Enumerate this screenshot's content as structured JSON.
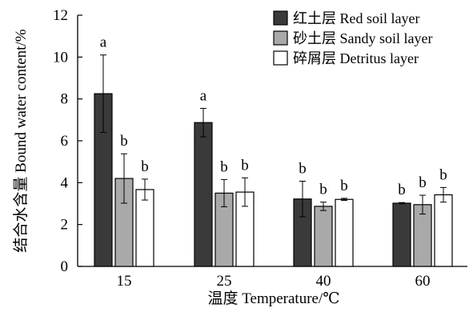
{
  "chart_data": {
    "type": "bar",
    "xlabel": "温度 Temperature/℃",
    "ylabel": "结合水含量 Bound water content/%",
    "ylim": [
      0,
      12
    ],
    "yticks": [
      0,
      2,
      4,
      6,
      8,
      10,
      12
    ],
    "categories": [
      "15",
      "25",
      "40",
      "60"
    ],
    "legend_position": "top-right",
    "series": [
      {
        "name": "红土层 Red soil layer",
        "color": "#3a3a3a",
        "values": [
          8.25,
          6.87,
          3.22,
          3.02
        ],
        "errors": [
          1.85,
          0.68,
          0.85,
          0.03
        ],
        "letters": [
          "a",
          "a",
          "b",
          "b"
        ]
      },
      {
        "name": "砂土层 Sandy soil layer",
        "color": "#a9a9a9",
        "values": [
          4.2,
          3.5,
          2.87,
          2.95
        ],
        "errors": [
          1.18,
          0.65,
          0.2,
          0.45
        ],
        "letters": [
          "b",
          "b",
          "b",
          "b"
        ]
      },
      {
        "name": "碎屑层 Detritus layer",
        "color": "#ffffff",
        "values": [
          3.67,
          3.55,
          3.2,
          3.42
        ],
        "errors": [
          0.5,
          0.68,
          0.05,
          0.35
        ],
        "letters": [
          "b",
          "b",
          "b",
          "b"
        ]
      }
    ]
  }
}
